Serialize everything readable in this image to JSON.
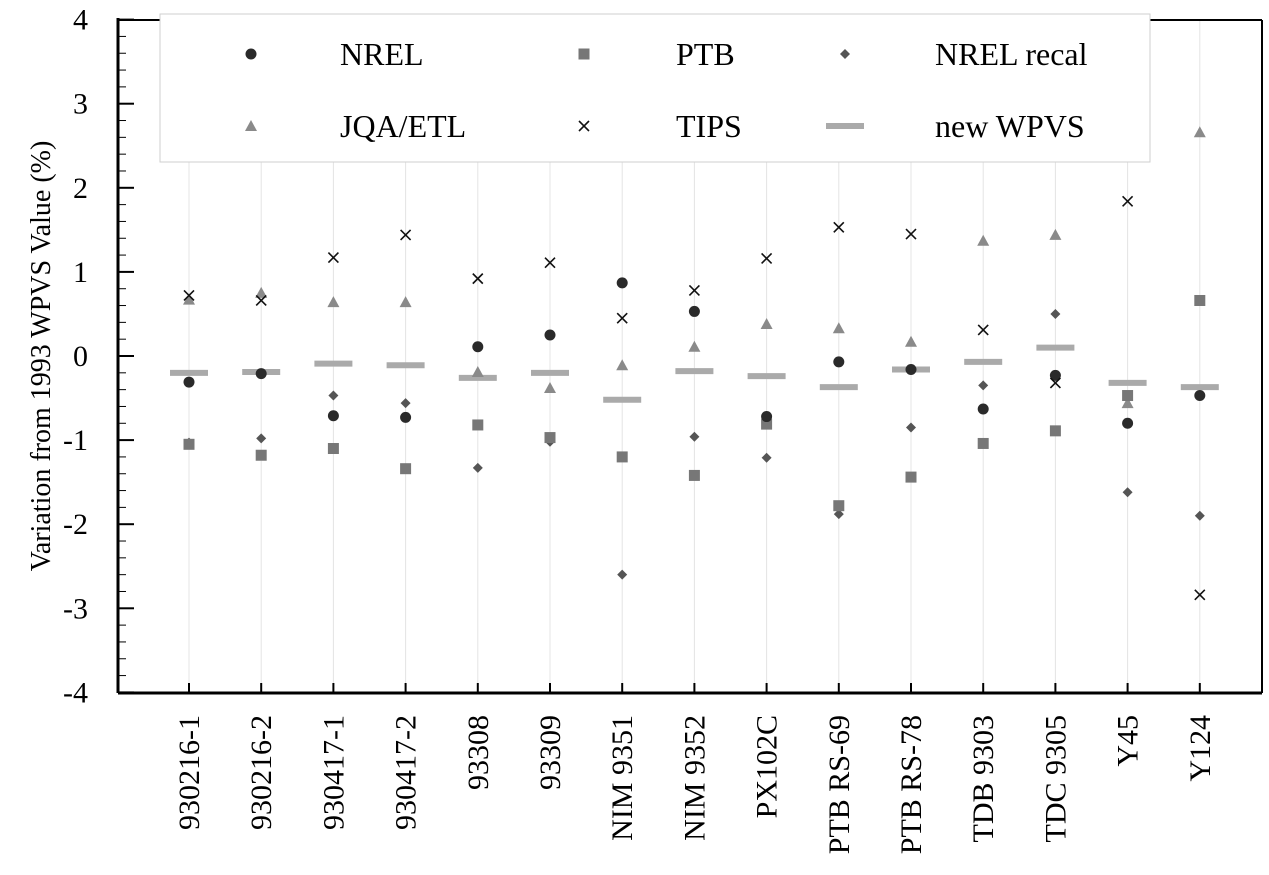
{
  "chart_data": {
    "type": "scatter",
    "ylabel": "Variation from 1993 WPVS Value (%)",
    "ylim": [
      -4,
      4
    ],
    "yticks": [
      -4,
      -3,
      -2,
      -1,
      0,
      1,
      2,
      3,
      4
    ],
    "ytick_labels": [
      "-4",
      "-3",
      "-2",
      "-1",
      "0",
      "1",
      "2",
      "3",
      "4"
    ],
    "grid": "vertical",
    "legend_position": "top",
    "categories": [
      "930216-1",
      "930216-2",
      "930417-1",
      "930417-2",
      "93308",
      "93309",
      "NIM 9351",
      "NIM 9352",
      "PX102C",
      "PTB RS-69",
      "PTB RS-78",
      "TDB 9303",
      "TDC 9305",
      "Y45",
      "Y124"
    ],
    "series": [
      {
        "name": "NREL",
        "marker": "circle",
        "color": "#2a2a2a",
        "values": [
          -0.31,
          -0.21,
          -0.71,
          -0.73,
          0.11,
          0.25,
          0.87,
          0.53,
          -0.72,
          -0.07,
          -0.16,
          -0.63,
          -0.23,
          -0.8,
          -0.47
        ]
      },
      {
        "name": "PTB",
        "marker": "square",
        "color": "#777777",
        "values": [
          -1.05,
          -1.18,
          -1.1,
          -1.34,
          -0.82,
          -0.97,
          -1.2,
          -1.42,
          -0.81,
          -1.78,
          -1.44,
          -1.04,
          -0.89,
          -0.47,
          0.66
        ]
      },
      {
        "name": "NREL recal",
        "marker": "diamond",
        "color": "#555555",
        "values": [
          -1.03,
          -0.98,
          -0.47,
          -0.56,
          -1.33,
          -1.02,
          -2.6,
          -0.96,
          -1.21,
          -1.88,
          -0.85,
          -0.35,
          0.5,
          -1.62,
          -1.9
        ]
      },
      {
        "name": "JQA/ETL",
        "marker": "triangle",
        "color": "#8a8a8a",
        "values": [
          0.67,
          0.75,
          0.64,
          0.64,
          -0.19,
          -0.38,
          -0.11,
          0.11,
          0.38,
          0.33,
          0.17,
          1.37,
          1.44,
          -0.56,
          2.66
        ]
      },
      {
        "name": "TIPS",
        "marker": "x",
        "color": "#111111",
        "values": [
          0.72,
          0.66,
          1.17,
          1.44,
          0.92,
          1.11,
          0.45,
          0.78,
          1.16,
          1.53,
          1.45,
          0.31,
          -0.32,
          1.84,
          -2.84
        ]
      },
      {
        "name": "new WPVS",
        "marker": "dash",
        "color": "#aaaaaa",
        "values": [
          -0.2,
          -0.19,
          -0.09,
          -0.11,
          -0.26,
          -0.2,
          -0.52,
          -0.18,
          -0.24,
          -0.37,
          -0.16,
          -0.07,
          0.1,
          -0.32,
          -0.37
        ]
      }
    ]
  }
}
